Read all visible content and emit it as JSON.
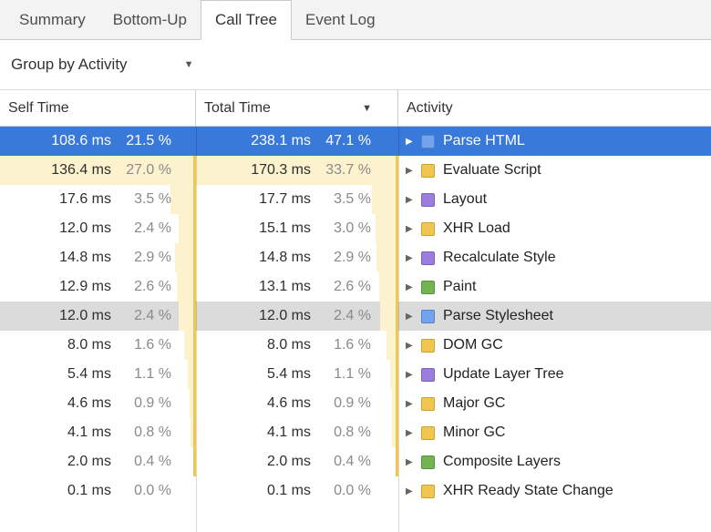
{
  "tabs": [
    {
      "label": "Summary",
      "active": false
    },
    {
      "label": "Bottom-Up",
      "active": false
    },
    {
      "label": "Call Tree",
      "active": true
    },
    {
      "label": "Event Log",
      "active": false
    }
  ],
  "toolbar": {
    "group_by_label": "Group by Activity"
  },
  "grid": {
    "columns": {
      "self": "Self Time",
      "total": "Total Time",
      "activity": "Activity"
    },
    "sort_column": "total",
    "bar_scale": 3.7
  },
  "icons": {
    "dropdown_caret": "▼",
    "sort_desc": "▼",
    "disclosure": "▶"
  },
  "colors": {
    "selection": "#3879D9",
    "hover_row": "#DBDBDB",
    "bar_fill": "#FCF2CE",
    "bar_edge": "#F0C84E",
    "categories": {
      "loading": {
        "fill": "#73A3EC",
        "border": "#5182C9"
      },
      "scripting": {
        "fill": "#F0C64E",
        "border": "#CDA32F"
      },
      "rendering": {
        "fill": "#9B7EDC",
        "border": "#7C5FC1"
      },
      "painting": {
        "fill": "#73B351",
        "border": "#58963B"
      }
    }
  },
  "rows": [
    {
      "self_time": "108.6 ms",
      "self_pct": "21.5 %",
      "total_time": "238.1 ms",
      "total_pct": "47.1 %",
      "activity": "Parse HTML",
      "category": "loading",
      "highlight": "selected"
    },
    {
      "self_time": "136.4 ms",
      "self_pct": "27.0 %",
      "total_time": "170.3 ms",
      "total_pct": "33.7 %",
      "activity": "Evaluate Script",
      "category": "scripting",
      "highlight": ""
    },
    {
      "self_time": "17.6 ms",
      "self_pct": "3.5 %",
      "total_time": "17.7 ms",
      "total_pct": "3.5 %",
      "activity": "Layout",
      "category": "rendering",
      "highlight": ""
    },
    {
      "self_time": "12.0 ms",
      "self_pct": "2.4 %",
      "total_time": "15.1 ms",
      "total_pct": "3.0 %",
      "activity": "XHR Load",
      "category": "scripting",
      "highlight": ""
    },
    {
      "self_time": "14.8 ms",
      "self_pct": "2.9 %",
      "total_time": "14.8 ms",
      "total_pct": "2.9 %",
      "activity": "Recalculate Style",
      "category": "rendering",
      "highlight": ""
    },
    {
      "self_time": "12.9 ms",
      "self_pct": "2.6 %",
      "total_time": "13.1 ms",
      "total_pct": "2.6 %",
      "activity": "Paint",
      "category": "painting",
      "highlight": ""
    },
    {
      "self_time": "12.0 ms",
      "self_pct": "2.4 %",
      "total_time": "12.0 ms",
      "total_pct": "2.4 %",
      "activity": "Parse Stylesheet",
      "category": "loading",
      "highlight": "hovered"
    },
    {
      "self_time": "8.0 ms",
      "self_pct": "1.6 %",
      "total_time": "8.0 ms",
      "total_pct": "1.6 %",
      "activity": "DOM GC",
      "category": "scripting",
      "highlight": ""
    },
    {
      "self_time": "5.4 ms",
      "self_pct": "1.1 %",
      "total_time": "5.4 ms",
      "total_pct": "1.1 %",
      "activity": "Update Layer Tree",
      "category": "rendering",
      "highlight": ""
    },
    {
      "self_time": "4.6 ms",
      "self_pct": "0.9 %",
      "total_time": "4.6 ms",
      "total_pct": "0.9 %",
      "activity": "Major GC",
      "category": "scripting",
      "highlight": ""
    },
    {
      "self_time": "4.1 ms",
      "self_pct": "0.8 %",
      "total_time": "4.1 ms",
      "total_pct": "0.8 %",
      "activity": "Minor GC",
      "category": "scripting",
      "highlight": ""
    },
    {
      "self_time": "2.0 ms",
      "self_pct": "0.4 %",
      "total_time": "2.0 ms",
      "total_pct": "0.4 %",
      "activity": "Composite Layers",
      "category": "painting",
      "highlight": ""
    },
    {
      "self_time": "0.1 ms",
      "self_pct": "0.0 %",
      "total_time": "0.1 ms",
      "total_pct": "0.0 %",
      "activity": "XHR Ready State Change",
      "category": "scripting",
      "highlight": ""
    }
  ]
}
